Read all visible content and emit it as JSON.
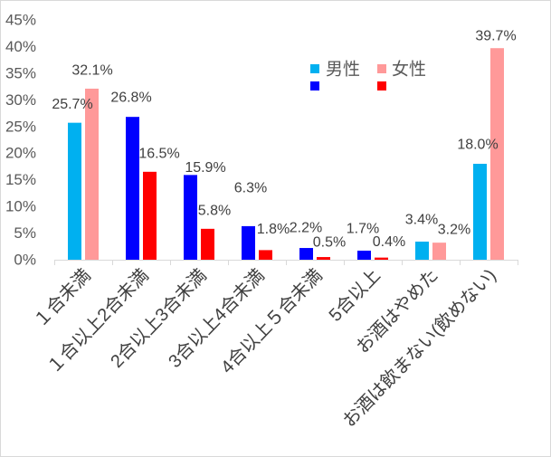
{
  "chart_data": {
    "type": "bar",
    "categories": [
      "１合未満",
      "１合以上2合未満",
      "2合以上3合未満",
      "3合以上4合未満",
      "4合以上５合未満",
      "5合以上",
      "お酒はやめた",
      "お酒は飲まない(飲めない)"
    ],
    "series": [
      {
        "name": "男性",
        "values": [
          25.7,
          26.8,
          15.9,
          6.3,
          2.2,
          1.7,
          3.4,
          18.0
        ],
        "colors": [
          "#00B0F0",
          "#0000FF",
          "#0000FF",
          "#0000FF",
          "#0000FF",
          "#0000FF",
          "#00B0F0",
          "#00B0F0"
        ]
      },
      {
        "name": "女性",
        "values": [
          32.1,
          16.5,
          5.8,
          1.8,
          0.5,
          0.4,
          3.2,
          39.7
        ],
        "colors": [
          "#FF9999",
          "#FF0000",
          "#FF0000",
          "#FF0000",
          "#FF0000",
          "#FF0000",
          "#FF9999",
          "#FF9999"
        ]
      }
    ],
    "unit": "%",
    "ylim": [
      0,
      45
    ],
    "yticks": [
      0,
      5,
      10,
      15,
      20,
      25,
      30,
      35,
      40,
      45
    ],
    "grid": false,
    "legend": {
      "position": "top-right",
      "swatches": [
        [
          "#00B0F0",
          "#0000FF"
        ],
        [
          "#FF9999",
          "#FF0000"
        ]
      ]
    },
    "axis_text_color": "#595959",
    "label_text_color": "#404040",
    "axis_line_color": "#D9D9D9",
    "border_color": "#D9D9D9"
  }
}
